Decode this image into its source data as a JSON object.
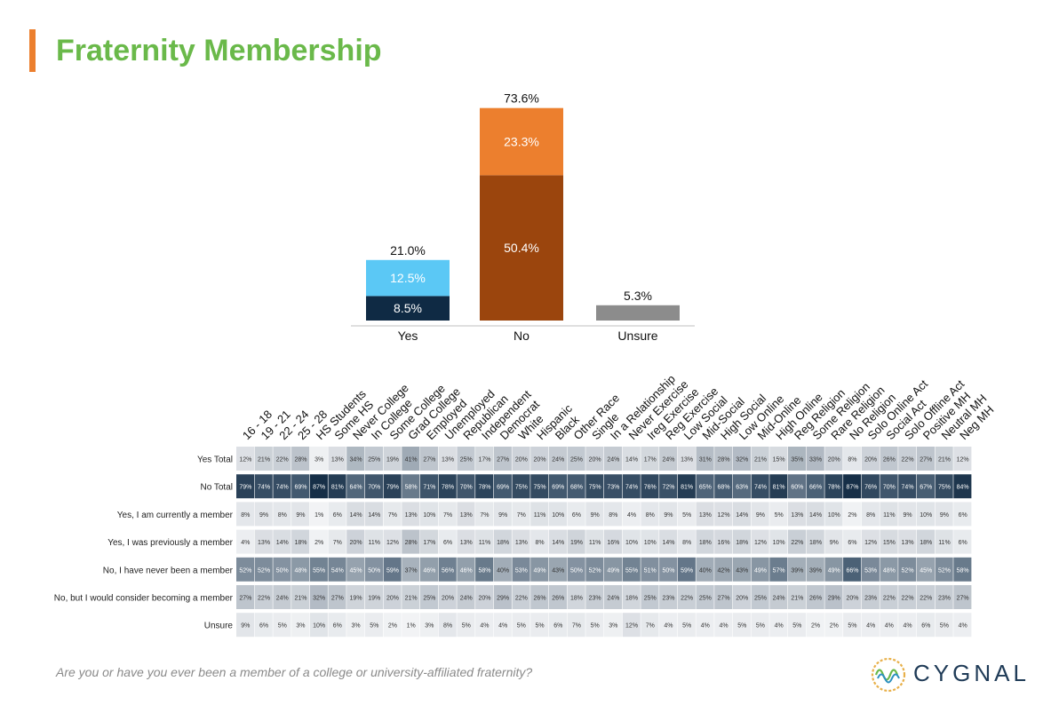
{
  "title": "Fraternity Membership",
  "question": "Are you or have you ever been a member of a college or university-affiliated fraternity?",
  "logo_text": "CYGNAL",
  "colors": {
    "accent_bar": "#ec7f2e",
    "title_green": "#6ab94a",
    "yes_dark": "#0f2a44",
    "yes_light": "#5bc8f5",
    "no_dark": "#9b450d",
    "no_light": "#ec7f2e",
    "unsure": "#8c8c8c"
  },
  "chart_data": [
    {
      "type": "bar",
      "stacked": true,
      "categories": [
        "Yes",
        "No",
        "Unsure"
      ],
      "totals": [
        "21.0%",
        "73.6%",
        "5.3%"
      ],
      "total_values": [
        21.0,
        73.6,
        5.3
      ],
      "segments": [
        [
          {
            "value": 8.5,
            "label": "8.5%"
          },
          {
            "value": 12.5,
            "label": "12.5%"
          }
        ],
        [
          {
            "value": 50.4,
            "label": "50.4%"
          },
          {
            "value": 23.3,
            "label": "23.3%"
          }
        ],
        [
          {
            "value": 5.3,
            "label": ""
          }
        ]
      ],
      "ylim": [
        0,
        73.6
      ]
    },
    {
      "type": "heatmap",
      "columns": [
        "16 - 18",
        "19 - 21",
        "22 - 24",
        "25 - 28",
        "HS Students",
        "Some HS",
        "Never College",
        "In College",
        "Some College",
        "Grad College",
        "Employed",
        "Unemployed",
        "Republican",
        "Independent",
        "Democrat",
        "White",
        "Hispanic",
        "Black",
        "Other Race",
        "Single",
        "In a Relationship",
        "Never Exercise",
        "Ireg Exercise",
        "Reg Exercise",
        "Low Social",
        "Mid-Social",
        "High Social",
        "Low Online",
        "Mid-Online",
        "High Online",
        "Reg Religion",
        "Some Religion",
        "Rare Religion",
        "No Religion",
        "Solo Online Act",
        "Social Act",
        "Solo Offline Act",
        "Positive MH",
        "Neutral MH",
        "Neg MH"
      ],
      "rows": [
        {
          "label": "Yes Total",
          "values": [
            12,
            21,
            22,
            28,
            3,
            13,
            34,
            25,
            19,
            41,
            27,
            13,
            25,
            17,
            27,
            20,
            20,
            24,
            25,
            20,
            24,
            14,
            17,
            24,
            13,
            31,
            28,
            32,
            21,
            15,
            35,
            33,
            20,
            8,
            20,
            26,
            22,
            27,
            21,
            12
          ]
        },
        {
          "label": "No Total",
          "values": [
            79,
            74,
            74,
            69,
            87,
            81,
            64,
            70,
            79,
            58,
            71,
            78,
            70,
            78,
            69,
            75,
            75,
            69,
            68,
            75,
            73,
            74,
            76,
            72,
            81,
            65,
            68,
            63,
            74,
            81,
            60,
            66,
            78,
            87,
            76,
            70,
            74,
            67,
            75,
            84
          ]
        },
        {
          "label": "Yes, I am currently a member",
          "values": [
            8,
            9,
            8,
            9,
            1,
            6,
            14,
            14,
            7,
            13,
            10,
            7,
            13,
            7,
            9,
            7,
            11,
            10,
            6,
            9,
            8,
            4,
            8,
            9,
            5,
            13,
            12,
            14,
            9,
            5,
            13,
            14,
            10,
            2,
            8,
            11,
            9,
            10,
            9,
            6
          ]
        },
        {
          "label": "Yes, I was previously a member",
          "values": [
            4,
            13,
            14,
            18,
            2,
            7,
            20,
            11,
            12,
            28,
            17,
            6,
            13,
            11,
            18,
            13,
            8,
            14,
            19,
            11,
            16,
            10,
            10,
            14,
            8,
            18,
            16,
            18,
            12,
            10,
            22,
            18,
            9,
            6,
            12,
            15,
            13,
            18,
            11,
            6
          ]
        },
        {
          "label": "No, I have never been a member",
          "values": [
            52,
            52,
            50,
            48,
            55,
            54,
            45,
            50,
            59,
            37,
            46,
            56,
            46,
            58,
            40,
            53,
            49,
            43,
            50,
            52,
            49,
            55,
            51,
            50,
            59,
            40,
            42,
            43,
            49,
            57,
            39,
            39,
            49,
            66,
            53,
            48,
            52,
            45,
            52,
            58
          ]
        },
        {
          "label": "No, but I would consider becoming a member",
          "values": [
            27,
            22,
            24,
            21,
            32,
            27,
            19,
            19,
            20,
            21,
            25,
            20,
            24,
            20,
            29,
            22,
            26,
            26,
            18,
            23,
            24,
            18,
            25,
            23,
            22,
            25,
            27,
            20,
            25,
            24,
            21,
            26,
            29,
            20,
            23,
            22,
            22,
            22,
            23,
            27
          ]
        },
        {
          "label": "Unsure",
          "values": [
            9,
            6,
            5,
            3,
            10,
            6,
            3,
            5,
            2,
            1,
            3,
            8,
            5,
            4,
            4,
            5,
            5,
            6,
            7,
            5,
            3,
            12,
            7,
            4,
            5,
            4,
            4,
            5,
            5,
            4,
            5,
            2,
            2,
            5,
            4,
            4,
            4,
            6,
            5,
            4
          ]
        }
      ]
    }
  ]
}
